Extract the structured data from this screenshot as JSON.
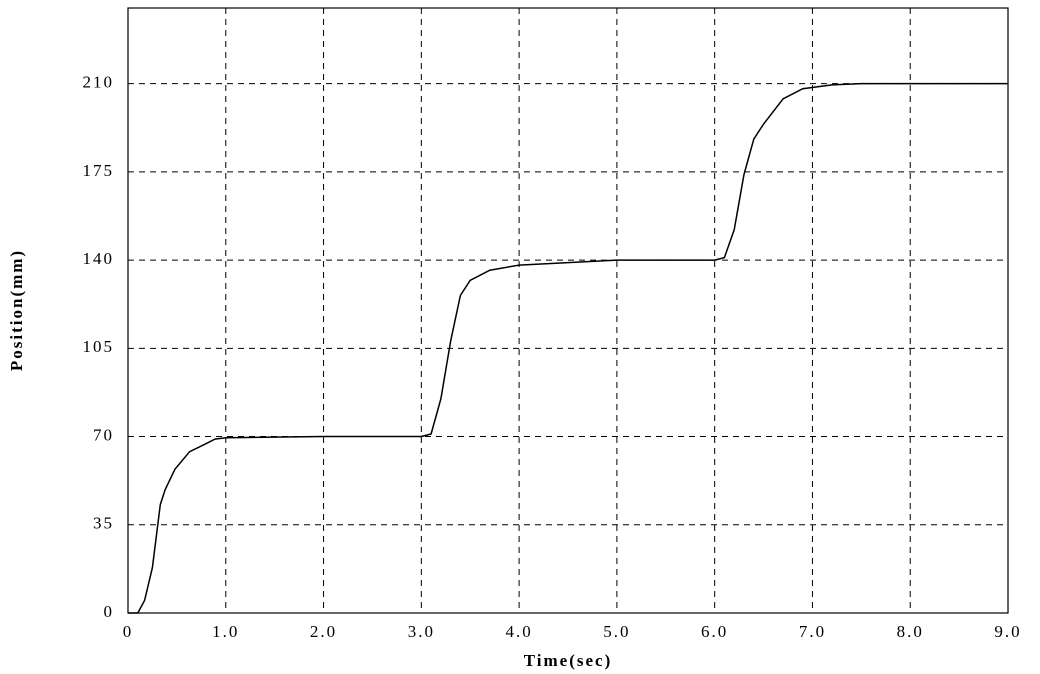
{
  "chart_data": {
    "type": "line",
    "x_label": "Time(sec)",
    "y_label": "Position(mm)",
    "xlim": [
      0,
      9
    ],
    "ylim": [
      0,
      240
    ],
    "xticks": [
      0,
      {
        "value": 1,
        "label": "1.0"
      },
      {
        "value": 2,
        "label": "2.0"
      },
      {
        "value": 3,
        "label": "3.0"
      },
      {
        "value": 4,
        "label": "4.0"
      },
      {
        "value": 5,
        "label": "5.0"
      },
      {
        "value": 6,
        "label": "6.0"
      },
      {
        "value": 7,
        "label": "7.0"
      },
      {
        "value": 8,
        "label": "8.0"
      },
      {
        "value": 9,
        "label": "9.0"
      }
    ],
    "yticks": [
      0,
      35,
      70,
      105,
      140,
      175,
      210
    ],
    "grid": true,
    "series": [
      {
        "color": "#000000",
        "x": [
          0,
          0.1,
          0.17,
          0.25,
          0.33,
          0.38,
          0.48,
          0.63,
          0.79,
          0.89,
          1.0,
          2.0,
          3.0,
          3.1,
          3.2,
          3.3,
          3.4,
          3.5,
          3.7,
          4.0,
          4.5,
          5.0,
          6.0,
          6.1,
          6.2,
          6.3,
          6.4,
          6.5,
          6.7,
          6.9,
          7.2,
          7.5,
          9.0
        ],
        "values": [
          0,
          0,
          5,
          18,
          43,
          49,
          57,
          64,
          67,
          69,
          69.5,
          70,
          70,
          71,
          85,
          108,
          126,
          132,
          136,
          138,
          139,
          140,
          140,
          141,
          152,
          174,
          188,
          194,
          204,
          208,
          209.5,
          210,
          210
        ]
      }
    ]
  }
}
